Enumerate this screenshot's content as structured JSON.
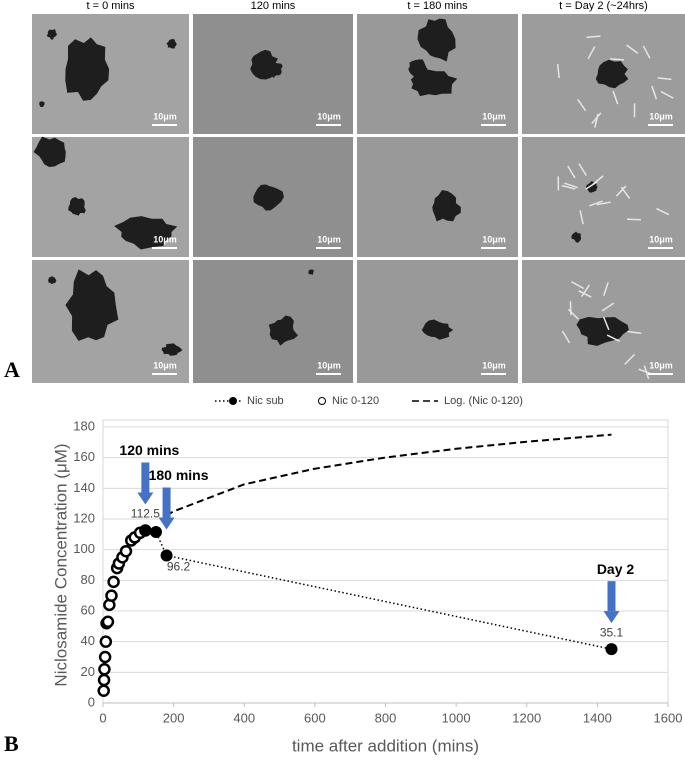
{
  "panel_labels": [
    "A",
    "B"
  ],
  "micrographs": {
    "column_headers": [
      "t = 0 mins",
      "120 mins",
      "t = 180 mins",
      "t = Day 2 (~24hrs)"
    ],
    "scale_labels": [
      "10μm",
      "10μm",
      "10μm",
      "10μm",
      "10μm",
      "10μm",
      "10μm",
      "10μm",
      "10μm",
      "10μm",
      "10μm",
      "10μm"
    ]
  },
  "chart_data": {
    "type": "scatter",
    "x_label": "time after addition (mins)",
    "y_label": "Niclosamide Concentration (μM)",
    "xlim": [
      0,
      1600
    ],
    "xticks": [
      0,
      200,
      400,
      600,
      800,
      1000,
      1200,
      1400,
      1600
    ],
    "ylim": [
      0,
      180
    ],
    "yticks": [
      0,
      20,
      40,
      60,
      80,
      100,
      120,
      140,
      160,
      180
    ],
    "grid": true,
    "legend": "top",
    "series": [
      {
        "name": "Nic sub",
        "color": "#000000",
        "marker": "filled",
        "line": "dotted",
        "x": [
          120,
          150,
          180,
          1440
        ],
        "values": [
          112.5,
          111.5,
          96.2,
          35.1
        ],
        "value_labels": [
          "112.5",
          null,
          "96.2",
          "35.1"
        ]
      },
      {
        "name": "Nic 0-120",
        "color": "#000000",
        "marker": "open",
        "line": "none",
        "x": [
          2,
          3,
          4,
          6,
          8,
          10,
          14,
          18,
          24,
          30,
          40,
          45,
          55,
          65,
          80,
          90,
          105,
          120
        ],
        "values": [
          8,
          15,
          22,
          30,
          40,
          52,
          53,
          64,
          70,
          79,
          88,
          91,
          95,
          99,
          106,
          108,
          111,
          112.5
        ]
      },
      {
        "name": "Log. (Nic 0-120)",
        "color": "#000000",
        "marker": "none",
        "line": "dashed",
        "x": [
          180,
          200,
          400,
          600,
          800,
          1000,
          1200,
          1440
        ],
        "values": [
          122.4,
          125,
          142.6,
          152.8,
          160.1,
          165.8,
          170.4,
          175
        ]
      }
    ],
    "annotations": [
      {
        "text": "120 mins",
        "x": 120,
        "color": "#4472c4"
      },
      {
        "text": "180 mins",
        "x": 180,
        "color": "#4472c4"
      },
      {
        "text": "Day 2",
        "x": 1440,
        "color": "#4472c4"
      }
    ]
  }
}
